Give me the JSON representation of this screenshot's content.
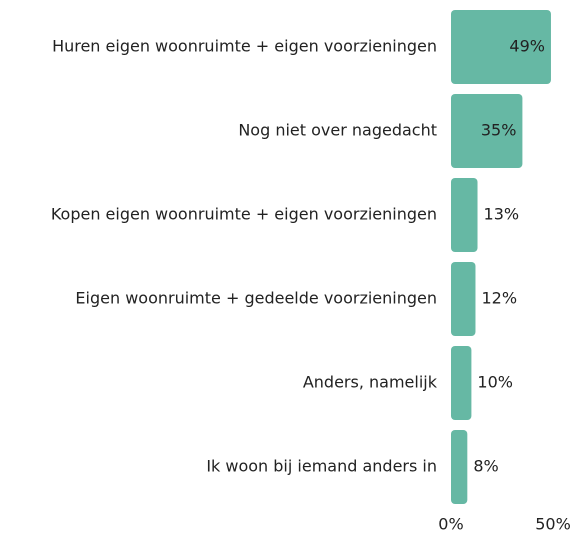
{
  "chart_data": {
    "type": "barh",
    "categories": [
      "Huren eigen woonruimte + eigen voorzieningen",
      "Nog niet over nagedacht",
      "Kopen eigen woonruimte + eigen voorzieningen",
      "Eigen woonruimte + gedeelde voorzieningen",
      "Anders, namelijk",
      "Ik woon bij iemand anders in"
    ],
    "values": [
      49,
      35,
      13,
      12,
      10,
      8
    ],
    "value_labels": [
      "49%",
      "35%",
      "13%",
      "12%",
      "10%",
      "8%"
    ],
    "color": "#66b8a4",
    "xlim": [
      0,
      50
    ],
    "xticks": [
      {
        "value": 0,
        "label": "0%"
      },
      {
        "value": 50,
        "label": "50%"
      }
    ]
  }
}
